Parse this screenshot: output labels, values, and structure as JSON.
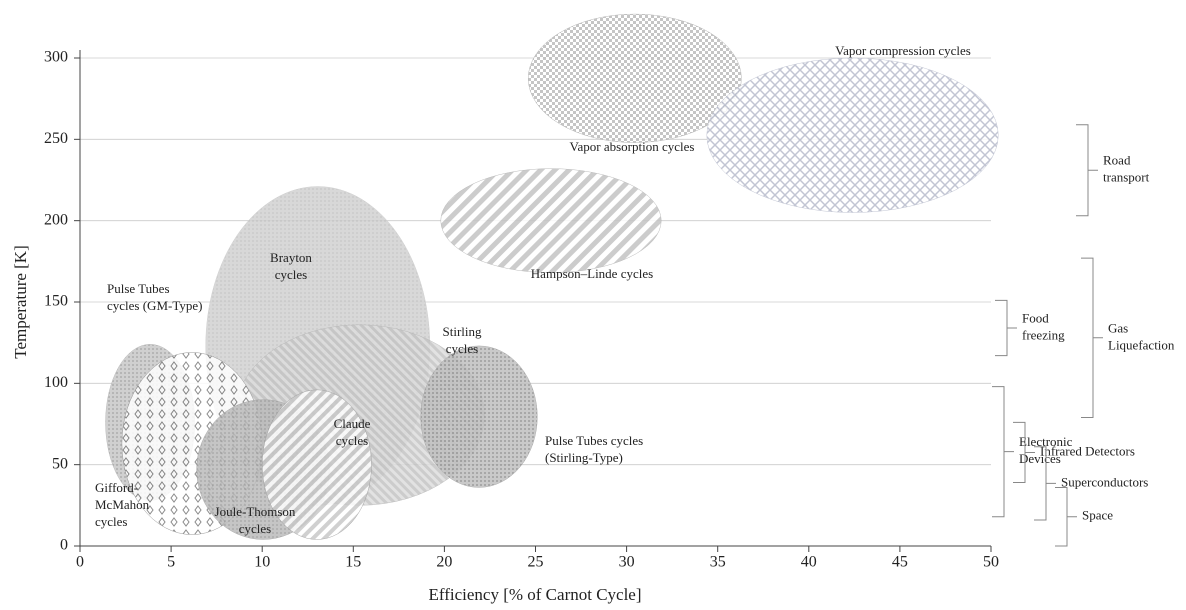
{
  "chart_data": {
    "type": "region",
    "x_label": "Efficiency [% of Carnot Cycle]",
    "y_label": "Temperature [K]",
    "xlim": [
      0,
      50
    ],
    "xticks": [
      0,
      5,
      10,
      15,
      20,
      25,
      30,
      35,
      40,
      45,
      50
    ],
    "ylim": [
      0,
      300
    ],
    "yticks": [
      0,
      50,
      100,
      150,
      200,
      250,
      300
    ],
    "grid": true,
    "regions": [
      {
        "name": [
          "Vapor absorption cycles"
        ],
        "color": "#a8a8a8",
        "x": [
          24.6,
          36.3
        ],
        "y": [
          248,
          327
        ]
      },
      {
        "name": [
          "Vapor compression cycles"
        ],
        "color": "#b8bccc",
        "x": [
          34.4,
          50.4
        ],
        "y": [
          205,
          300
        ]
      },
      {
        "name": [
          "Hampson–Linde cycles"
        ],
        "color": "#b0b0b0",
        "x": [
          19.8,
          31.9
        ],
        "y": [
          168,
          232
        ]
      },
      {
        "name": [
          "Brayton",
          "cycles"
        ],
        "color": "#c8c8c8",
        "x": [
          6.9,
          19.2
        ],
        "y": [
          25,
          221
        ]
      },
      {
        "name": [
          "Stirling",
          "cycles"
        ],
        "color": "#b4b4b4",
        "x": [
          8.5,
          22.2
        ],
        "y": [
          25,
          136
        ]
      },
      {
        "name": [
          "Pulse Tubes cycles",
          "(Stirling-Type)"
        ],
        "color": "#a0a0a0",
        "x": [
          18.7,
          25.1
        ],
        "y": [
          36,
          123
        ]
      },
      {
        "name": [
          "Pulse Tubes",
          "cycles (GM-Type)"
        ],
        "color": "#b0b0b0",
        "x": [
          1.4,
          6.3
        ],
        "y": [
          28,
          124
        ]
      },
      {
        "name": [
          "Gifford-",
          "McMahon",
          "cycles"
        ],
        "color": "#888888",
        "x": [
          2.3,
          10.0
        ],
        "y": [
          7,
          119
        ]
      },
      {
        "name": [
          "Joule-Thomson",
          "cycles"
        ],
        "color": "#a0a0a0",
        "x": [
          6.4,
          13.7
        ],
        "y": [
          4,
          90
        ]
      },
      {
        "name": [
          "Claude",
          "cycles"
        ],
        "color": "#999999",
        "x": [
          10.0,
          16.0
        ],
        "y": [
          4,
          96
        ]
      }
    ],
    "applications": [
      {
        "name": [
          "Road",
          "transport"
        ],
        "range": [
          203,
          259
        ]
      },
      {
        "name": [
          "Gas",
          "Liquefaction"
        ],
        "range": [
          79,
          177
        ]
      },
      {
        "name": [
          "Food",
          "freezing"
        ],
        "range": [
          117,
          151
        ]
      },
      {
        "name": [
          "Electronic",
          "Devices"
        ],
        "range": [
          18,
          98
        ]
      },
      {
        "name": [
          "Infrared Detectors"
        ],
        "range": [
          39,
          76
        ]
      },
      {
        "name": [
          "Superconductors"
        ],
        "range": [
          16,
          61
        ]
      },
      {
        "name": [
          "Space"
        ],
        "range": [
          0,
          36
        ]
      }
    ]
  }
}
